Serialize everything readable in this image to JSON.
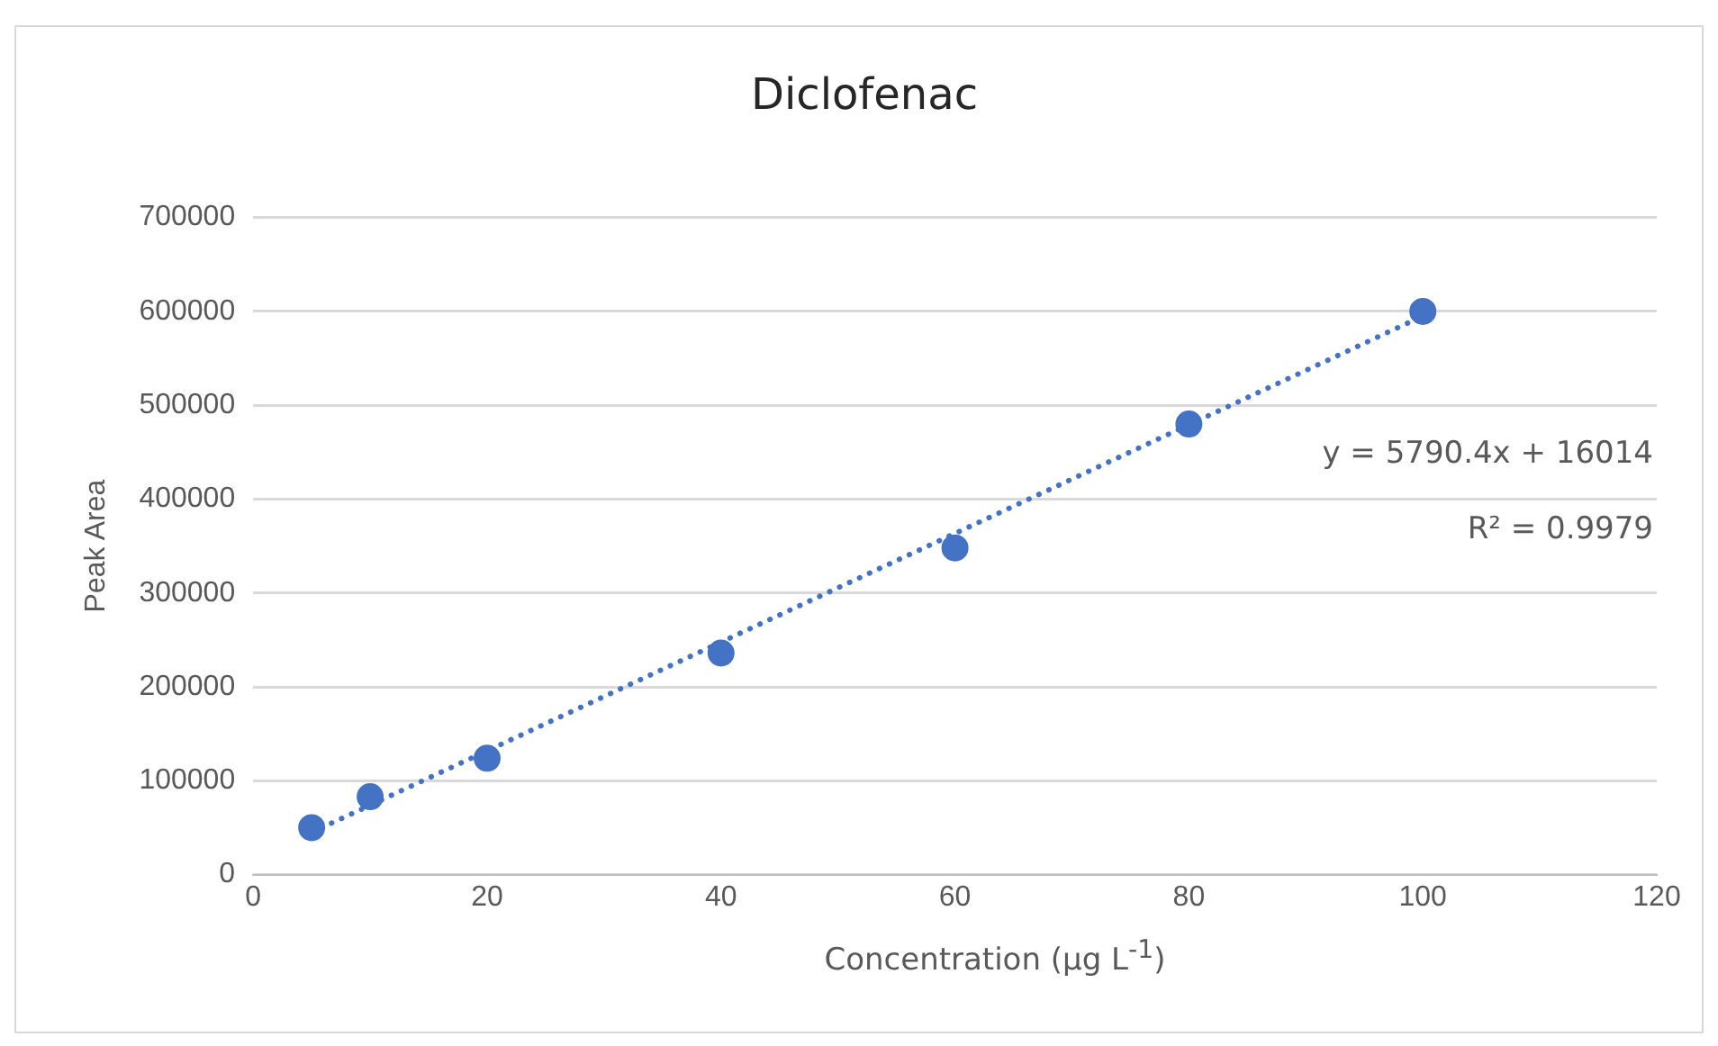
{
  "chart_data": {
    "type": "scatter",
    "title": "Diclofenac",
    "xlabel": "Concentration (μg L$^{-1}$)",
    "ylabel": "Peak Area",
    "x": [
      5,
      10,
      20,
      40,
      60,
      80,
      100
    ],
    "series": [
      {
        "color": "#4472c4",
        "values": [
          50000,
          83000,
          124000,
          236000,
          348000,
          480000,
          600000
        ],
        "marker": "circle"
      },
      {
        "type": "line",
        "color": "#4472c4",
        "x": [
          5,
          100
        ],
        "values": [
          45000,
          595000
        ],
        "line_style": "dotted",
        "marker": "none"
      }
    ],
    "xlim": [
      0,
      120
    ],
    "xticks": [
      0,
      20,
      40,
      60,
      80,
      100,
      120
    ],
    "ylim": [
      0,
      700000
    ],
    "yticks": [
      0,
      100000,
      200000,
      300000,
      400000,
      500000,
      600000,
      700000
    ],
    "grid": "y",
    "legend": false,
    "annotations": [
      "y = 5790.4x + 16014",
      "R² = 0.9979"
    ]
  }
}
